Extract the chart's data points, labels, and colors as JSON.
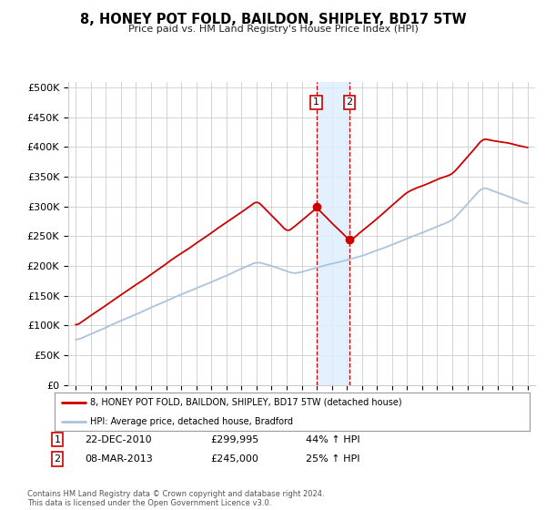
{
  "title": "8, HONEY POT FOLD, BAILDON, SHIPLEY, BD17 5TW",
  "subtitle": "Price paid vs. HM Land Registry's House Price Index (HPI)",
  "ylabel_ticks": [
    "£0",
    "£50K",
    "£100K",
    "£150K",
    "£200K",
    "£250K",
    "£300K",
    "£350K",
    "£400K",
    "£450K",
    "£500K"
  ],
  "ytick_values": [
    0,
    50000,
    100000,
    150000,
    200000,
    250000,
    300000,
    350000,
    400000,
    450000,
    500000
  ],
  "xlim_start": 1994.5,
  "xlim_end": 2025.5,
  "ylim_min": 0,
  "ylim_max": 510000,
  "hpi_color": "#aac4df",
  "price_color": "#cc0000",
  "span_color": "#ddeeff",
  "marker1_date": 2010.97,
  "marker2_date": 2013.18,
  "marker1_price": 299995,
  "marker2_price": 245000,
  "legend_label1": "8, HONEY POT FOLD, BAILDON, SHIPLEY, BD17 5TW (detached house)",
  "legend_label2": "HPI: Average price, detached house, Bradford",
  "event1_label": "1",
  "event2_label": "2",
  "event1_date_str": "22-DEC-2010",
  "event1_price_str": "£299,995",
  "event1_hpi_str": "44% ↑ HPI",
  "event2_date_str": "08-MAR-2013",
  "event2_price_str": "£245,000",
  "event2_hpi_str": "25% ↑ HPI",
  "footer": "Contains HM Land Registry data © Crown copyright and database right 2024.\nThis data is licensed under the Open Government Licence v3.0.",
  "background_color": "#ffffff",
  "grid_color": "#cccccc"
}
